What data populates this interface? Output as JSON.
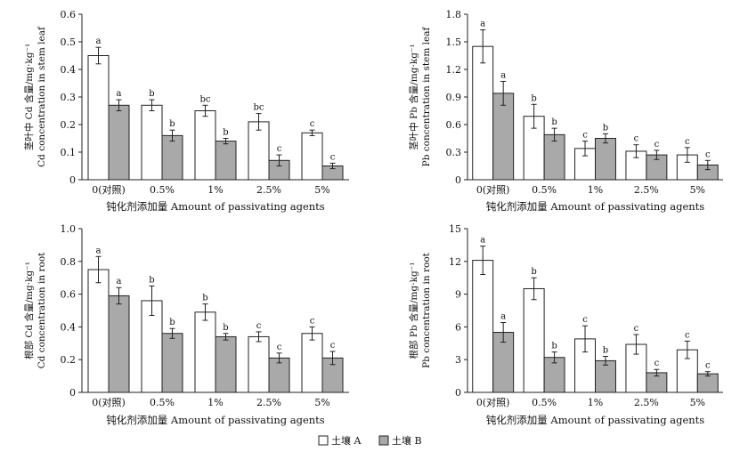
{
  "legend": {
    "soil_a": "土壤 A",
    "soil_b": "土壤 B",
    "colors": {
      "soil_a": "#ffffff",
      "soil_b": "#a9a9a9",
      "stroke": "#222222"
    }
  },
  "chart_data": [
    {
      "type": "bar",
      "panel": "top-left",
      "categories": [
        "0(对照)",
        "0.5%",
        "1%",
        "2.5%",
        "5%"
      ],
      "xlabel": "钝化剂添加量 Amount of passivating agents",
      "ylabel_cn": "茎叶中 Cd 含量/mg·kg⁻¹",
      "ylabel_en": "Cd concentration in stem leaf",
      "ylim": [
        0,
        0.6
      ],
      "yticks": [
        0,
        0.1,
        0.2,
        0.3,
        0.4,
        0.5,
        0.6
      ],
      "yticklabels": [
        "0",
        "0.1",
        "0.2",
        "0.3",
        "0.4",
        "0.5",
        "0.6"
      ],
      "series": [
        {
          "key": "soil_a",
          "values": [
            0.45,
            0.27,
            0.25,
            0.21,
            0.17
          ],
          "errors": [
            0.03,
            0.02,
            0.02,
            0.03,
            0.01
          ],
          "letters": [
            "a",
            "b",
            "bc",
            "bc",
            "c"
          ]
        },
        {
          "key": "soil_b",
          "values": [
            0.27,
            0.16,
            0.14,
            0.07,
            0.05
          ],
          "errors": [
            0.02,
            0.02,
            0.01,
            0.02,
            0.01
          ],
          "letters": [
            "a",
            "b",
            "b",
            "c",
            "c"
          ]
        }
      ]
    },
    {
      "type": "bar",
      "panel": "top-right",
      "categories": [
        "0(对照)",
        "0.5%",
        "1%",
        "2.5%",
        "5%"
      ],
      "xlabel": "钝化剂添加量 Amount of passivating agents",
      "ylabel_cn": "茎叶中 Pb 含量/mg·kg⁻¹",
      "ylabel_en": "Pb concentration in stem leaf",
      "ylim": [
        0,
        1.8
      ],
      "yticks": [
        0,
        0.3,
        0.6,
        0.9,
        1.2,
        1.5,
        1.8
      ],
      "yticklabels": [
        "0",
        "0.3",
        "0.6",
        "0.9",
        "1.2",
        "1.5",
        "1.8"
      ],
      "series": [
        {
          "key": "soil_a",
          "values": [
            1.45,
            0.69,
            0.34,
            0.31,
            0.27
          ],
          "errors": [
            0.18,
            0.13,
            0.08,
            0.07,
            0.08
          ],
          "letters": [
            "a",
            "b",
            "c",
            "c",
            "c"
          ]
        },
        {
          "key": "soil_b",
          "values": [
            0.94,
            0.49,
            0.45,
            0.27,
            0.16
          ],
          "errors": [
            0.13,
            0.07,
            0.05,
            0.05,
            0.05
          ],
          "letters": [
            "a",
            "b",
            "b",
            "c",
            "c"
          ]
        }
      ]
    },
    {
      "type": "bar",
      "panel": "bottom-left",
      "categories": [
        "0(对照)",
        "0.5%",
        "1%",
        "2.5%",
        "5%"
      ],
      "xlabel": "钝化剂添加量 Amount of passivating agents",
      "ylabel_cn": "根部 Cd 含量/mg·kg⁻¹",
      "ylabel_en": "Cd concentration in root",
      "ylim": [
        0,
        1.0
      ],
      "yticks": [
        0,
        0.2,
        0.4,
        0.6,
        0.8,
        1.0
      ],
      "yticklabels": [
        "0",
        "0.2",
        "0.4",
        "0.6",
        "0.8",
        "1.0"
      ],
      "series": [
        {
          "key": "soil_a",
          "values": [
            0.75,
            0.56,
            0.49,
            0.34,
            0.36
          ],
          "errors": [
            0.08,
            0.09,
            0.05,
            0.03,
            0.04
          ],
          "letters": [
            "a",
            "b",
            "b",
            "c",
            "c"
          ]
        },
        {
          "key": "soil_b",
          "values": [
            0.59,
            0.36,
            0.34,
            0.21,
            0.21
          ],
          "errors": [
            0.05,
            0.03,
            0.02,
            0.03,
            0.04
          ],
          "letters": [
            "a",
            "b",
            "b",
            "c",
            "c"
          ]
        }
      ]
    },
    {
      "type": "bar",
      "panel": "bottom-right",
      "categories": [
        "0(对照)",
        "0.5%",
        "1%",
        "2.5%",
        "5%"
      ],
      "xlabel": "钝化剂添加量 Amount of passivating agents",
      "ylabel_cn": "根部 Pb 含量/mg·kg⁻¹",
      "ylabel_en": "Pb concentration in root",
      "ylim": [
        0,
        15
      ],
      "yticks": [
        0,
        3,
        6,
        9,
        12,
        15
      ],
      "yticklabels": [
        "0",
        "3",
        "6",
        "9",
        "12",
        "15"
      ],
      "series": [
        {
          "key": "soil_a",
          "values": [
            12.1,
            9.5,
            4.9,
            4.4,
            3.9
          ],
          "errors": [
            1.3,
            1.0,
            1.2,
            0.9,
            0.8
          ],
          "letters": [
            "a",
            "b",
            "c",
            "c",
            "c"
          ]
        },
        {
          "key": "soil_b",
          "values": [
            5.5,
            3.2,
            2.9,
            1.8,
            1.7
          ],
          "errors": [
            0.9,
            0.5,
            0.4,
            0.3,
            0.2
          ],
          "letters": [
            "a",
            "b",
            "b",
            "c",
            "c"
          ]
        }
      ]
    }
  ]
}
